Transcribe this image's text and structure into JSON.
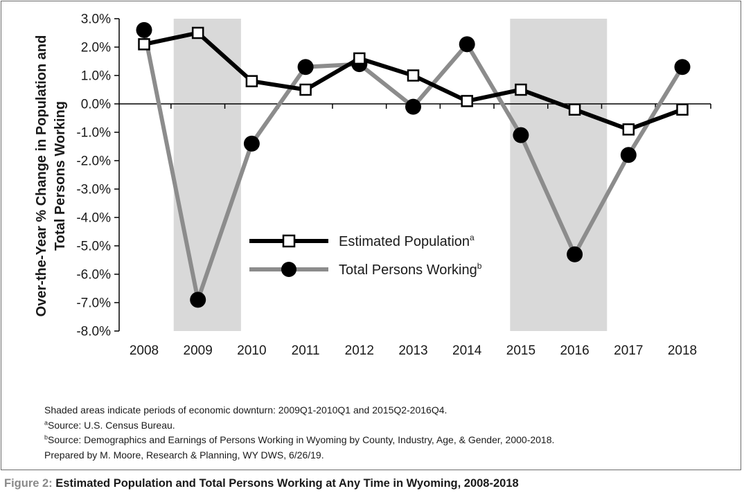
{
  "chart_data": {
    "type": "line",
    "categories": [
      "2008",
      "2009",
      "2010",
      "2011",
      "2012",
      "2013",
      "2014",
      "2015",
      "2016",
      "2017",
      "2018"
    ],
    "series": [
      {
        "name": "Estimated Population",
        "superscript": "a",
        "values": [
          2.1,
          2.5,
          0.8,
          0.5,
          1.6,
          1.0,
          0.1,
          0.5,
          -0.2,
          -0.9,
          -0.2
        ],
        "color": "#000000",
        "marker": "square"
      },
      {
        "name": "Total Persons Working",
        "superscript": "b",
        "values": [
          2.6,
          -6.9,
          -1.4,
          1.3,
          1.4,
          -0.1,
          2.1,
          -1.1,
          -5.3,
          -1.8,
          1.3
        ],
        "color": "#8c8c8c",
        "marker": "circle"
      }
    ],
    "ylim": [
      -8,
      3
    ],
    "yticks": [
      "3.0%",
      "2.0%",
      "1.0%",
      "0.0%",
      "-1.0%",
      "-2.0%",
      "-3.0%",
      "-4.0%",
      "-5.0%",
      "-6.0%",
      "-7.0%",
      "-8.0%"
    ],
    "ylabel_line1": "Over-the-Year % Change in Population and",
    "ylabel_line2": "Total Persons Working",
    "xlabel": "",
    "shaded_periods": [
      {
        "from": 2008.55,
        "to": 2009.8
      },
      {
        "from": 2014.8,
        "to": 2016.6
      }
    ],
    "shade_color": "#d9d9d9",
    "legend_position": "center"
  },
  "notes": {
    "shaded": "Shaded areas indicate periods of economic downturn: 2009Q1-2010Q1 and 2015Q2-2016Q4.",
    "source_a_mark": "a",
    "source_a": "Source: U.S. Census Bureau.",
    "source_b_mark": "b",
    "source_b": "Source: Demographics and Earnings of Persons Working in Wyoming by County, Industry, Age, & Gender, 2000-2018.",
    "prepared": "Prepared by M. Moore, Research & Planning, WY DWS, 6/26/19."
  },
  "caption": {
    "label": "Figure 2:",
    "title": "Estimated Population and Total Persons Working at Any Time in Wyoming, 2008-2018"
  }
}
